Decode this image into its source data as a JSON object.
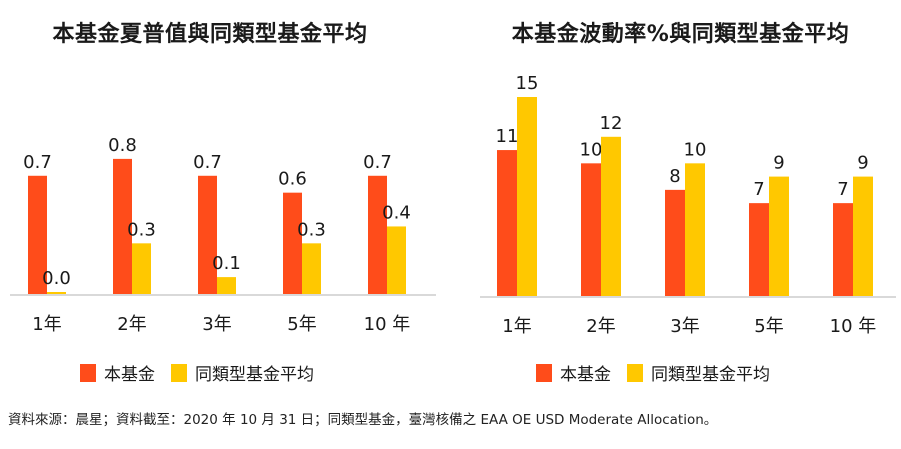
{
  "colors": {
    "fund": "#ff4c1a",
    "peer": "#ffc800",
    "axis": "#d9d9d9",
    "text": "#1a1a1a"
  },
  "legend": {
    "fund": "本基金",
    "peer": "同類型基金平均"
  },
  "footnote": "資料來源：晨星；資料截至：2020 年 10 月 31 日；同類型基金，臺灣核備之 EAA OE USD Moderate Allocation。",
  "chart_data": [
    {
      "type": "bar",
      "title": "本基金夏普值與同類型基金平均",
      "categories": [
        "1年",
        "2年",
        "3年",
        "5年",
        "10 年"
      ],
      "series": [
        {
          "name": "本基金",
          "values": [
            0.7,
            0.8,
            0.7,
            0.6,
            0.7
          ],
          "labels": [
            "0.7",
            "0.8",
            "0.7",
            "0.6",
            "0.7"
          ]
        },
        {
          "name": "同類型基金平均",
          "values": [
            0.0,
            0.3,
            0.1,
            0.3,
            0.4
          ],
          "labels": [
            "0.0",
            "0.3",
            "0.1",
            "0.3",
            "0.4"
          ]
        }
      ],
      "ylim": [
        0,
        0.9
      ],
      "grid": false,
      "legend_position": "bottom"
    },
    {
      "type": "bar",
      "title": "本基金波動率%與同類型基金平均",
      "categories": [
        "1年",
        "2年",
        "3年",
        "5年",
        "10 年"
      ],
      "series": [
        {
          "name": "本基金",
          "values": [
            11,
            10,
            8,
            7,
            7
          ],
          "labels": [
            "11",
            "10",
            "8",
            "7",
            "7"
          ]
        },
        {
          "name": "同類型基金平均",
          "values": [
            15,
            12,
            10,
            9,
            9
          ],
          "labels": [
            "15",
            "12",
            "10",
            "9",
            "9"
          ]
        }
      ],
      "ylim": [
        0,
        15
      ],
      "grid": false,
      "legend_position": "bottom"
    }
  ]
}
